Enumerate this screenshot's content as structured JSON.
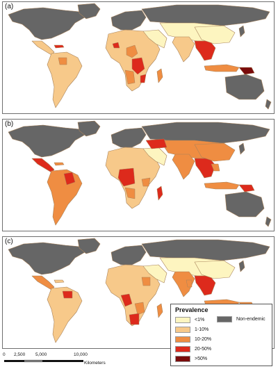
{
  "panels": [
    {
      "label": "(a)",
      "id": "a"
    },
    {
      "label": "(b)",
      "id": "b"
    },
    {
      "label": "(c)",
      "id": "c"
    }
  ],
  "legend": {
    "title": "Prevalence",
    "items": [
      {
        "label": "<1%",
        "color": "#fdf5c0"
      },
      {
        "label": "1-10%",
        "color": "#f7c98a"
      },
      {
        "label": "10-20%",
        "color": "#ef8d42"
      },
      {
        "label": "20-50%",
        "color": "#dd2a1c"
      },
      {
        "label": ">50%",
        "color": "#7a0b0b"
      }
    ],
    "non_endemic": {
      "label": "Non-endemic",
      "color": "#666666"
    }
  },
  "scale_bar": {
    "ticks": [
      "0",
      "2,500",
      "5,000",
      "10,000"
    ],
    "unit": "Kilometers"
  },
  "colors": {
    "non_endemic": "#666666",
    "lt1": "#fdf5c0",
    "p1_10": "#f7c98a",
    "p10_20": "#ef8d42",
    "p20_50": "#dd2a1c",
    "gt50": "#7a0b0b",
    "border": "#a8825a",
    "background": "#ffffff"
  }
}
